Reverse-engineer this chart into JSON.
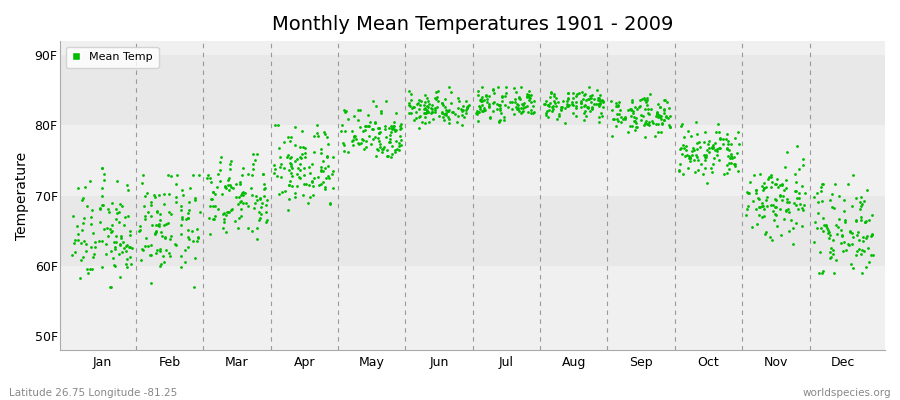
{
  "title": "Monthly Mean Temperatures 1901 - 2009",
  "ylabel": "Temperature",
  "xlabel_labels": [
    "Jan",
    "Feb",
    "Mar",
    "Apr",
    "May",
    "Jun",
    "Jul",
    "Aug",
    "Sep",
    "Oct",
    "Nov",
    "Dec"
  ],
  "legend_label": "Mean Temp",
  "dot_color": "#00bb00",
  "plot_bg_color": "#efefef",
  "fig_bg_color": "#ffffff",
  "ytick_labels": [
    "50F",
    "60F",
    "70F",
    "80F",
    "90F"
  ],
  "ytick_values": [
    50,
    60,
    70,
    80,
    90
  ],
  "ylim": [
    48,
    92
  ],
  "footer_left": "Latitude 26.75 Longitude -81.25",
  "footer_right": "worldspecies.org",
  "num_years": 109,
  "monthly_means": [
    64.5,
    65.5,
    69.5,
    74.0,
    79.0,
    82.5,
    83.0,
    83.0,
    81.5,
    76.0,
    69.5,
    65.5
  ],
  "monthly_stds": [
    3.8,
    3.5,
    3.0,
    3.0,
    2.0,
    1.2,
    1.0,
    1.0,
    1.3,
    2.0,
    3.0,
    3.5
  ],
  "monthly_mins": [
    57.0,
    57.0,
    62.0,
    67.0,
    74.0,
    79.5,
    80.0,
    80.0,
    78.0,
    71.0,
    63.0,
    59.0
  ],
  "monthly_maxs": [
    74.0,
    73.0,
    76.0,
    80.0,
    83.5,
    85.5,
    85.5,
    85.5,
    84.5,
    81.0,
    79.0,
    73.0
  ]
}
